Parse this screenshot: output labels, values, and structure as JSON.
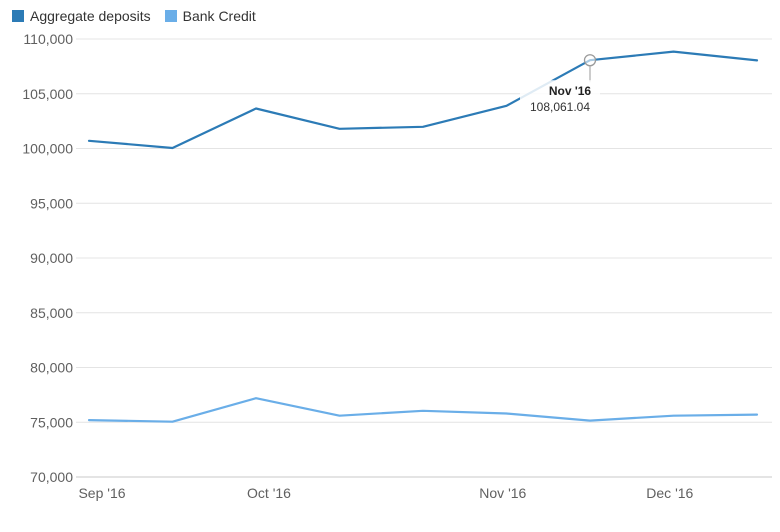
{
  "chart_data": {
    "type": "line",
    "title": "",
    "xlabel": "",
    "ylabel": "",
    "ylim": [
      70000,
      110000
    ],
    "y_ticks": [
      70000,
      75000,
      80000,
      85000,
      90000,
      95000,
      100000,
      105000,
      110000
    ],
    "y_tick_labels": [
      "70,000",
      "75,000",
      "80,000",
      "85,000",
      "90,000",
      "95,000",
      "100,000",
      "105,000",
      "110,000"
    ],
    "x_tick_labels": [
      "Sep '16",
      "Oct '16",
      "Nov '16",
      "Dec '16"
    ],
    "grid": true,
    "legend_position": "top-left",
    "series": [
      {
        "name": "Aggregate deposits",
        "color": "#2c7bb6",
        "values": [
          100700,
          100050,
          103650,
          101800,
          101980,
          103900,
          108061.04,
          108850,
          108050
        ]
      },
      {
        "name": "Bank Credit",
        "color": "#6aaee8",
        "values": [
          75200,
          75050,
          77200,
          75600,
          76050,
          75800,
          75150,
          75600,
          75700
        ]
      }
    ],
    "tooltip": {
      "series": "Aggregate deposits",
      "point_index": 6,
      "label": "Nov '16",
      "value_text": "108,061.04"
    }
  }
}
